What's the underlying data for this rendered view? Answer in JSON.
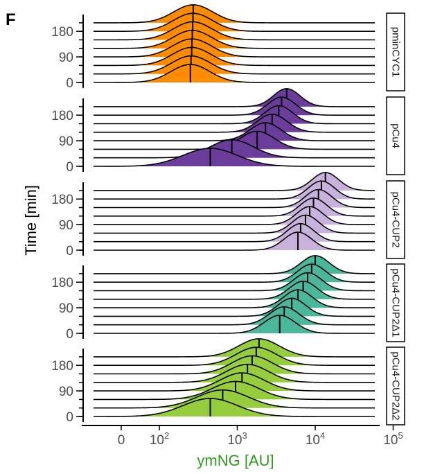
{
  "panel_label": "F",
  "chart_data": {
    "type": "ridgeline",
    "xlabel": "ymNG [AU]",
    "ylabel": "Time [min]",
    "x_scale": "pseudo-log10",
    "x_tick_labels": [
      {
        "value": 0,
        "label": "0",
        "exp": ""
      },
      {
        "value": 100,
        "label": "10",
        "exp": "2"
      },
      {
        "value": 1000,
        "label": "10",
        "exp": "3"
      },
      {
        "value": 10000,
        "label": "10",
        "exp": "4"
      },
      {
        "value": 100000,
        "label": "10",
        "exp": "5"
      }
    ],
    "y_ticks": [
      0,
      90,
      180
    ],
    "times": [
      0,
      30,
      60,
      90,
      120,
      150,
      180,
      210
    ],
    "colors": {
      "pminCYC1": "#ff8c00",
      "pCu4": "#6a3d9a",
      "pCu4-CUP2": "#c8b1db",
      "pCu4-CUP2Δ1": "#4ab79a",
      "pCu4-CUP2Δ2": "#96cd3d"
    },
    "panels": [
      {
        "name": "pminCYC1",
        "medians": [
          250,
          255,
          260,
          262,
          265,
          268,
          270,
          272
        ],
        "widths": [
          0.25,
          0.25,
          0.25,
          0.25,
          0.25,
          0.25,
          0.25,
          0.25
        ]
      },
      {
        "name": "pCu4",
        "medians": [
          450,
          850,
          1800,
          2300,
          2800,
          3400,
          3700,
          4300
        ],
        "widths": [
          0.35,
          0.28,
          0.22,
          0.2,
          0.19,
          0.18,
          0.18,
          0.17
        ]
      },
      {
        "name": "pCu4-CUP2",
        "medians": [
          6000,
          6500,
          7500,
          8500,
          9500,
          11000,
          12000,
          13500
        ],
        "widths": [
          0.18,
          0.17,
          0.17,
          0.17,
          0.17,
          0.17,
          0.17,
          0.17
        ]
      },
      {
        "name": "pCu4-CUP2Δ1",
        "medians": [
          3500,
          4000,
          5000,
          6000,
          7000,
          8000,
          9000,
          10000
        ],
        "widths": [
          0.2,
          0.19,
          0.18,
          0.18,
          0.18,
          0.18,
          0.18,
          0.18
        ]
      },
      {
        "name": "pCu4-CUP2Δ2",
        "medians": [
          450,
          650,
          950,
          1150,
          1350,
          1550,
          1750,
          1900
        ],
        "widths": [
          0.35,
          0.33,
          0.3,
          0.28,
          0.27,
          0.26,
          0.26,
          0.26
        ]
      }
    ]
  }
}
